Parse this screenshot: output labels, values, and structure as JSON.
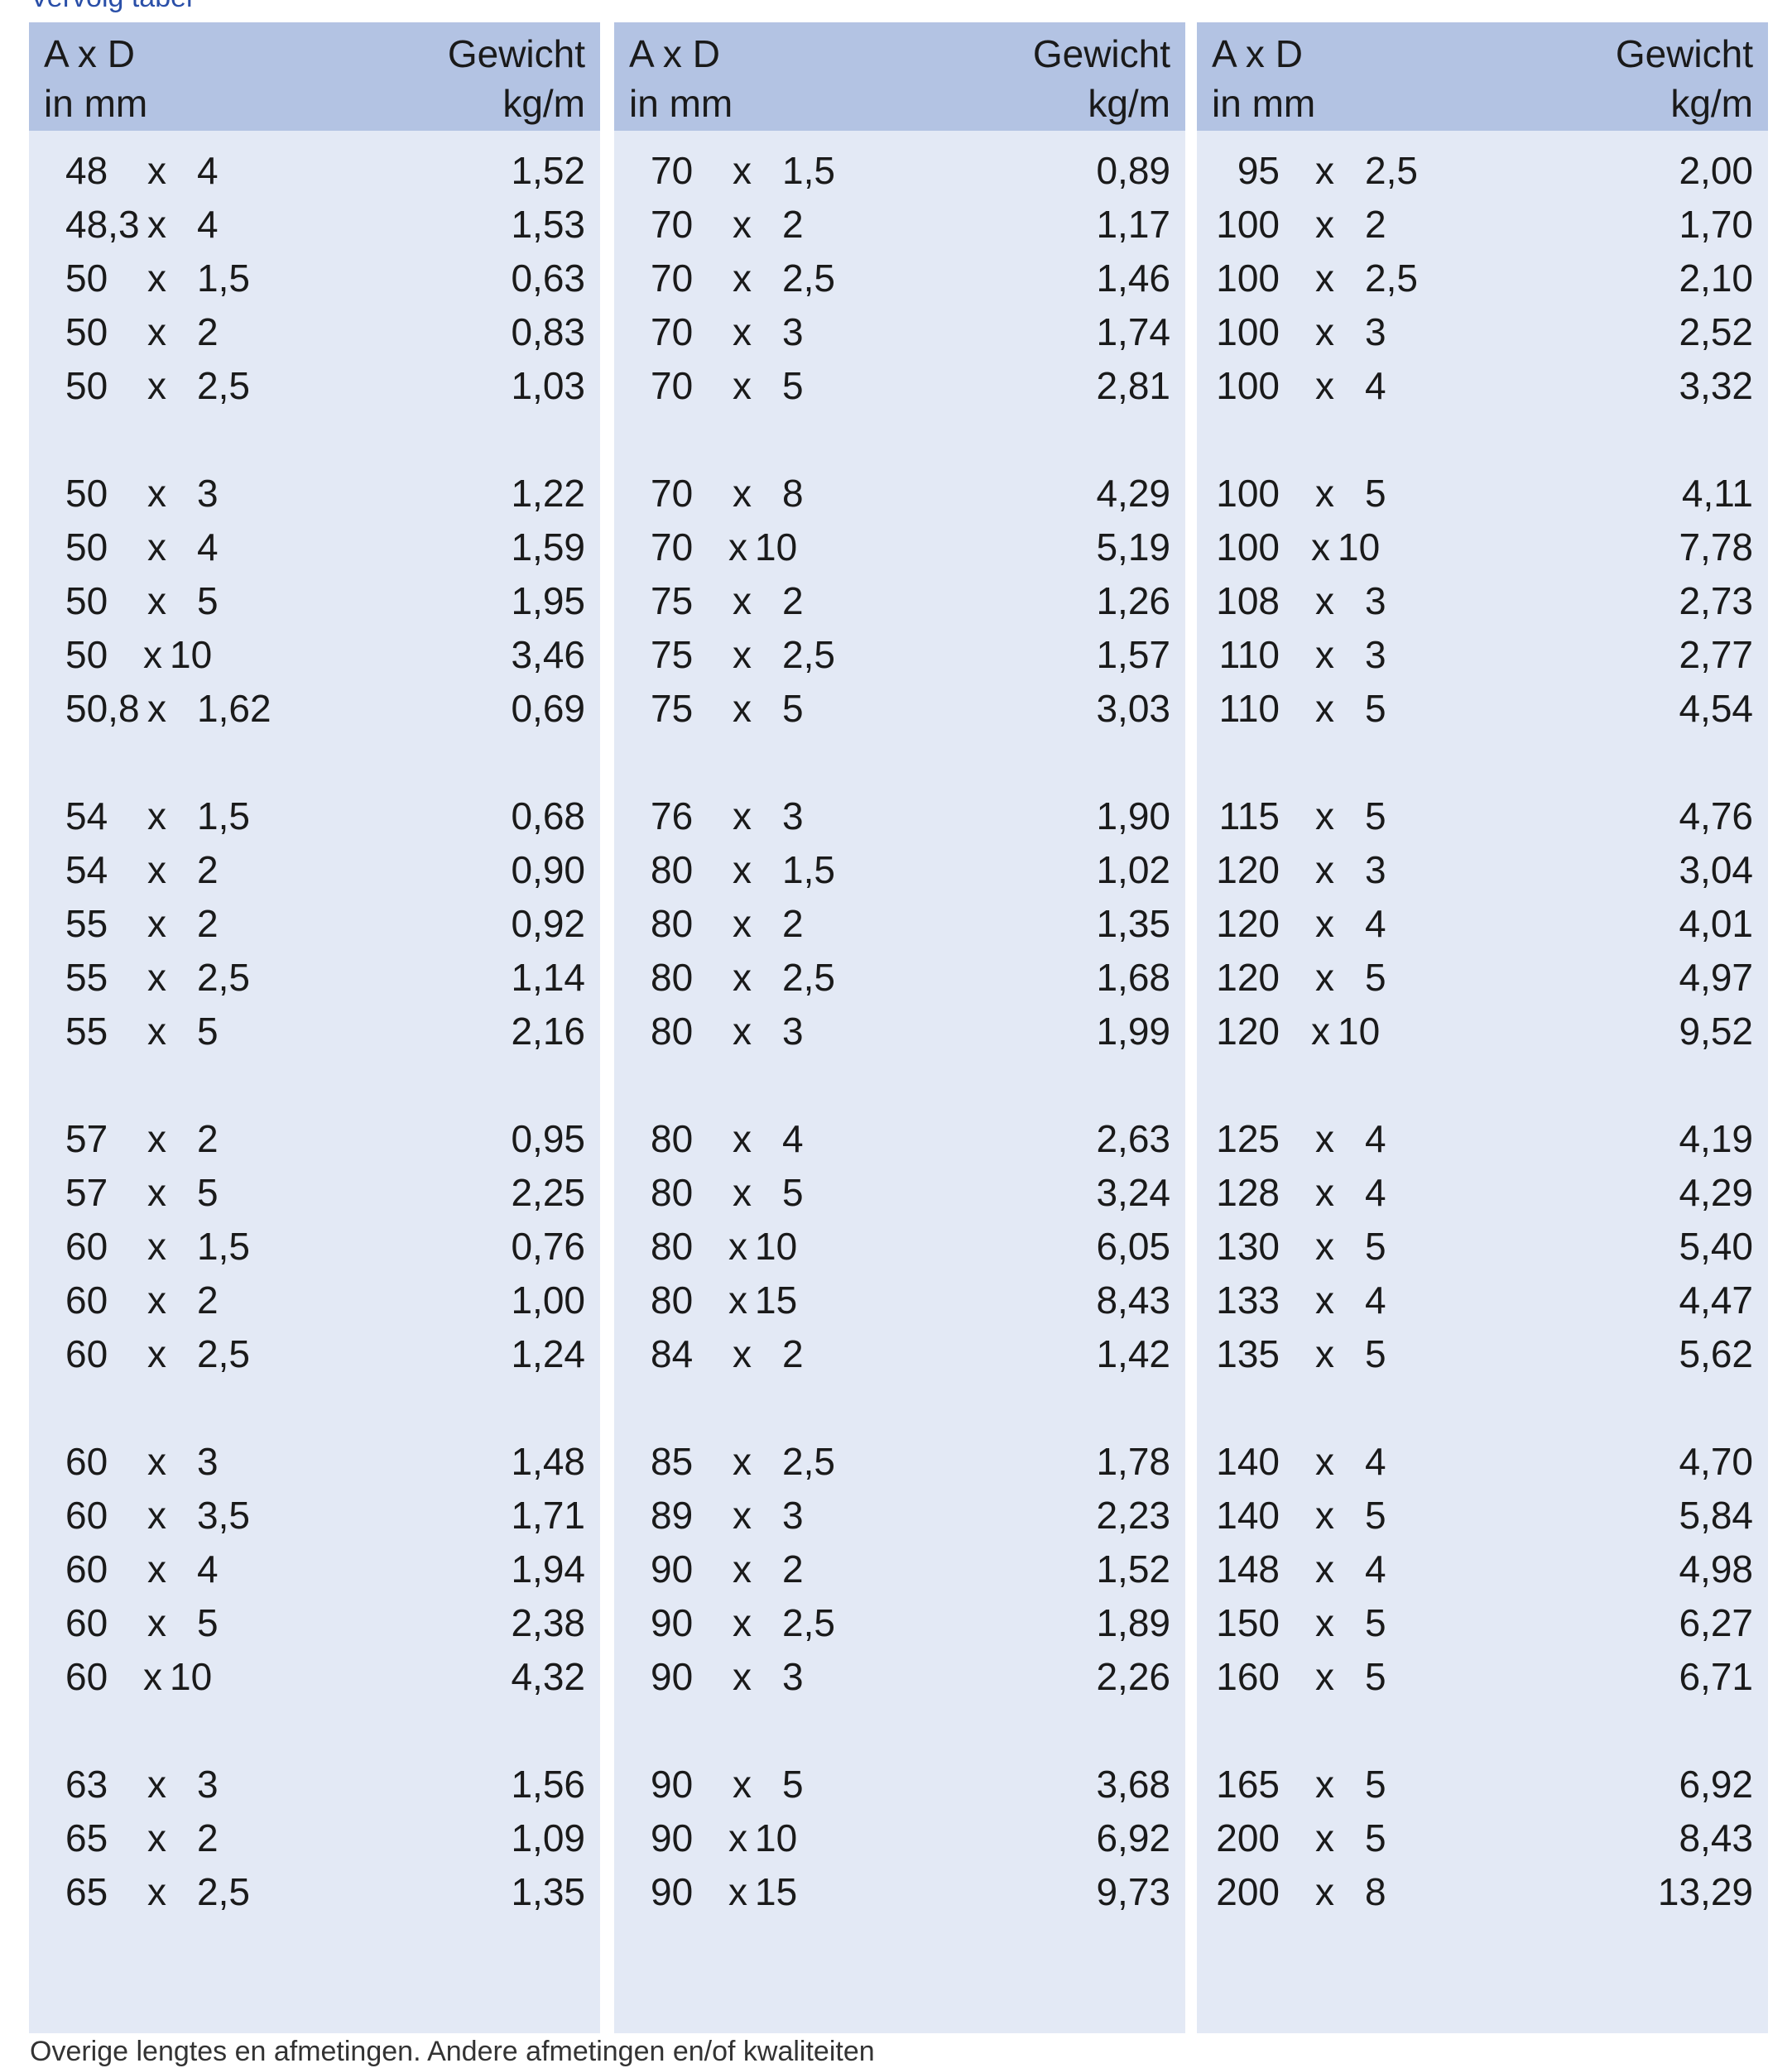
{
  "caption_top": "Vervolg tabel",
  "caption_bottom": "Overige lengtes en afmetingen. Andere afmetingen en/of kwaliteiten",
  "header": {
    "dim_line1": "A x D",
    "dim_line2": "in mm",
    "weight_line1": "Gewicht",
    "weight_line2": "kg/m"
  },
  "times": "x",
  "colors": {
    "header_bg": "#b3c3e3",
    "body_bg": "#e3e9f5",
    "caption": "#2a4fa8"
  },
  "columns": [
    [
      [
        [
          "48",
          "4",
          "1,52"
        ],
        [
          "48,3",
          "4",
          "1,53"
        ],
        [
          "50",
          "1,5",
          "0,63"
        ],
        [
          "50",
          "2",
          "0,83"
        ],
        [
          "50",
          "2,5",
          "1,03"
        ]
      ],
      [
        [
          "50",
          "3",
          "1,22"
        ],
        [
          "50",
          "4",
          "1,59"
        ],
        [
          "50",
          "5",
          "1,95"
        ],
        [
          "50",
          "10",
          "3,46"
        ],
        [
          "50,8",
          "1,62",
          "0,69"
        ]
      ],
      [
        [
          "54",
          "1,5",
          "0,68"
        ],
        [
          "54",
          "2",
          "0,90"
        ],
        [
          "55",
          "2",
          "0,92"
        ],
        [
          "55",
          "2,5",
          "1,14"
        ],
        [
          "55",
          "5",
          "2,16"
        ]
      ],
      [
        [
          "57",
          "2",
          "0,95"
        ],
        [
          "57",
          "5",
          "2,25"
        ],
        [
          "60",
          "1,5",
          "0,76"
        ],
        [
          "60",
          "2",
          "1,00"
        ],
        [
          "60",
          "2,5",
          "1,24"
        ]
      ],
      [
        [
          "60",
          "3",
          "1,48"
        ],
        [
          "60",
          "3,5",
          "1,71"
        ],
        [
          "60",
          "4",
          "1,94"
        ],
        [
          "60",
          "5",
          "2,38"
        ],
        [
          "60",
          "10",
          "4,32"
        ]
      ],
      [
        [
          "63",
          "3",
          "1,56"
        ],
        [
          "65",
          "2",
          "1,09"
        ],
        [
          "65",
          "2,5",
          "1,35"
        ]
      ]
    ],
    [
      [
        [
          "70",
          "1,5",
          "0,89"
        ],
        [
          "70",
          "2",
          "1,17"
        ],
        [
          "70",
          "2,5",
          "1,46"
        ],
        [
          "70",
          "3",
          "1,74"
        ],
        [
          "70",
          "5",
          "2,81"
        ]
      ],
      [
        [
          "70",
          "8",
          "4,29"
        ],
        [
          "70",
          "10",
          "5,19"
        ],
        [
          "75",
          "2",
          "1,26"
        ],
        [
          "75",
          "2,5",
          "1,57"
        ],
        [
          "75",
          "5",
          "3,03"
        ]
      ],
      [
        [
          "76",
          "3",
          "1,90"
        ],
        [
          "80",
          "1,5",
          "1,02"
        ],
        [
          "80",
          "2",
          "1,35"
        ],
        [
          "80",
          "2,5",
          "1,68"
        ],
        [
          "80",
          "3",
          "1,99"
        ]
      ],
      [
        [
          "80",
          "4",
          "2,63"
        ],
        [
          "80",
          "5",
          "3,24"
        ],
        [
          "80",
          "10",
          "6,05"
        ],
        [
          "80",
          "15",
          "8,43"
        ],
        [
          "84",
          "2",
          "1,42"
        ]
      ],
      [
        [
          "85",
          "2,5",
          "1,78"
        ],
        [
          "89",
          "3",
          "2,23"
        ],
        [
          "90",
          "2",
          "1,52"
        ],
        [
          "90",
          "2,5",
          "1,89"
        ],
        [
          "90",
          "3",
          "2,26"
        ]
      ],
      [
        [
          "90",
          "5",
          "3,68"
        ],
        [
          "90",
          "10",
          "6,92"
        ],
        [
          "90",
          "15",
          "9,73"
        ]
      ]
    ],
    [
      [
        [
          "95",
          "2,5",
          "2,00"
        ],
        [
          "100",
          "2",
          "1,70"
        ],
        [
          "100",
          "2,5",
          "2,10"
        ],
        [
          "100",
          "3",
          "2,52"
        ],
        [
          "100",
          "4",
          "3,32"
        ]
      ],
      [
        [
          "100",
          "5",
          "4,11"
        ],
        [
          "100",
          "10",
          "7,78"
        ],
        [
          "108",
          "3",
          "2,73"
        ],
        [
          "110",
          "3",
          "2,77"
        ],
        [
          "110",
          "5",
          "4,54"
        ]
      ],
      [
        [
          "115",
          "5",
          "4,76"
        ],
        [
          "120",
          "3",
          "3,04"
        ],
        [
          "120",
          "4",
          "4,01"
        ],
        [
          "120",
          "5",
          "4,97"
        ],
        [
          "120",
          "10",
          "9,52"
        ]
      ],
      [
        [
          "125",
          "4",
          "4,19"
        ],
        [
          "128",
          "4",
          "4,29"
        ],
        [
          "130",
          "5",
          "5,40"
        ],
        [
          "133",
          "4",
          "4,47"
        ],
        [
          "135",
          "5",
          "5,62"
        ]
      ],
      [
        [
          "140",
          "4",
          "4,70"
        ],
        [
          "140",
          "5",
          "5,84"
        ],
        [
          "148",
          "4",
          "4,98"
        ],
        [
          "150",
          "5",
          "6,27"
        ],
        [
          "160",
          "5",
          "6,71"
        ]
      ],
      [
        [
          "165",
          "5",
          "6,92"
        ],
        [
          "200",
          "5",
          "8,43"
        ],
        [
          "200",
          "8",
          "13,29"
        ]
      ]
    ]
  ]
}
